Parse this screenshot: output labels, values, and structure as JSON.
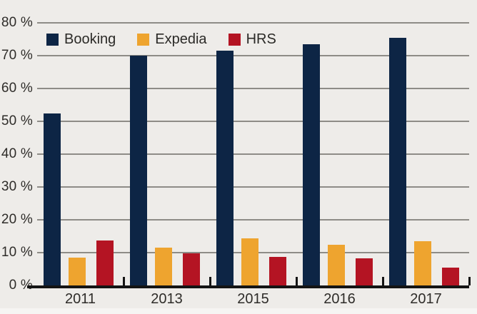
{
  "chart_data": {
    "type": "bar",
    "title": "",
    "categories": [
      "2011",
      "2013",
      "2015",
      "2016",
      "2017"
    ],
    "series": [
      {
        "name": "Booking",
        "color": "#0d2545",
        "values": [
          52.5,
          70,
          71.5,
          73.5,
          75.5
        ]
      },
      {
        "name": "Expedia",
        "color": "#eea42f",
        "values": [
          8.5,
          11.5,
          14.3,
          12.3,
          13.5
        ]
      },
      {
        "name": "HRS",
        "color": "#b41423",
        "values": [
          13.8,
          9.8,
          8.8,
          8.2,
          5.4
        ]
      }
    ],
    "yticks": [
      0,
      10,
      20,
      30,
      40,
      50,
      60,
      70,
      80
    ],
    "ytick_labels": [
      "0 %",
      "10 %",
      "20 %",
      "30 %",
      "40 %",
      "50 %",
      "60 %",
      "70 %",
      "80 %"
    ],
    "ylim": [
      0,
      80
    ],
    "xlabel": "",
    "ylabel": "",
    "grid": true,
    "legend_position": "top-left-inside"
  },
  "colors": {
    "background": "#eeece9",
    "gridline": "#8e8c87",
    "axis": "#141414",
    "text": "#2e2c29"
  }
}
